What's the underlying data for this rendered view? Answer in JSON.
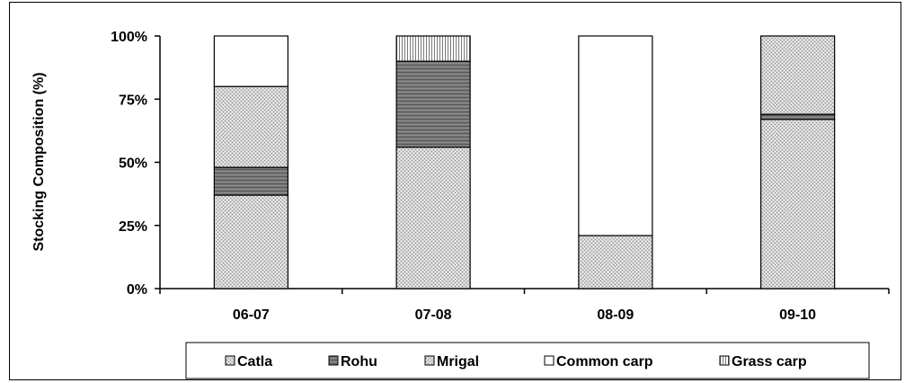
{
  "chart_data": {
    "type": "bar",
    "stacked": "percent",
    "title": "",
    "xlabel": "",
    "ylabel": "Stocking Composition (%)",
    "ylim": [
      0,
      100
    ],
    "yticks": [
      "0%",
      "25%",
      "50%",
      "75%",
      "100%"
    ],
    "categories": [
      "06-07",
      "07-08",
      "08-09",
      "09-10"
    ],
    "series": [
      {
        "name": "Catla",
        "values": [
          37,
          56,
          21,
          67
        ],
        "pattern": "light-dotted"
      },
      {
        "name": "Rohu",
        "values": [
          11,
          34,
          0,
          2
        ],
        "pattern": "dark-horizontal-stripes"
      },
      {
        "name": "Mrigal",
        "values": [
          32,
          0,
          0,
          31
        ],
        "pattern": "light-dotted"
      },
      {
        "name": "Common carp",
        "values": [
          20,
          0,
          79,
          0
        ],
        "pattern": "white"
      },
      {
        "name": "Grass carp",
        "values": [
          0,
          10,
          0,
          0
        ],
        "pattern": "vertical-stripes"
      }
    ],
    "legend_position": "bottom",
    "grid": false
  }
}
